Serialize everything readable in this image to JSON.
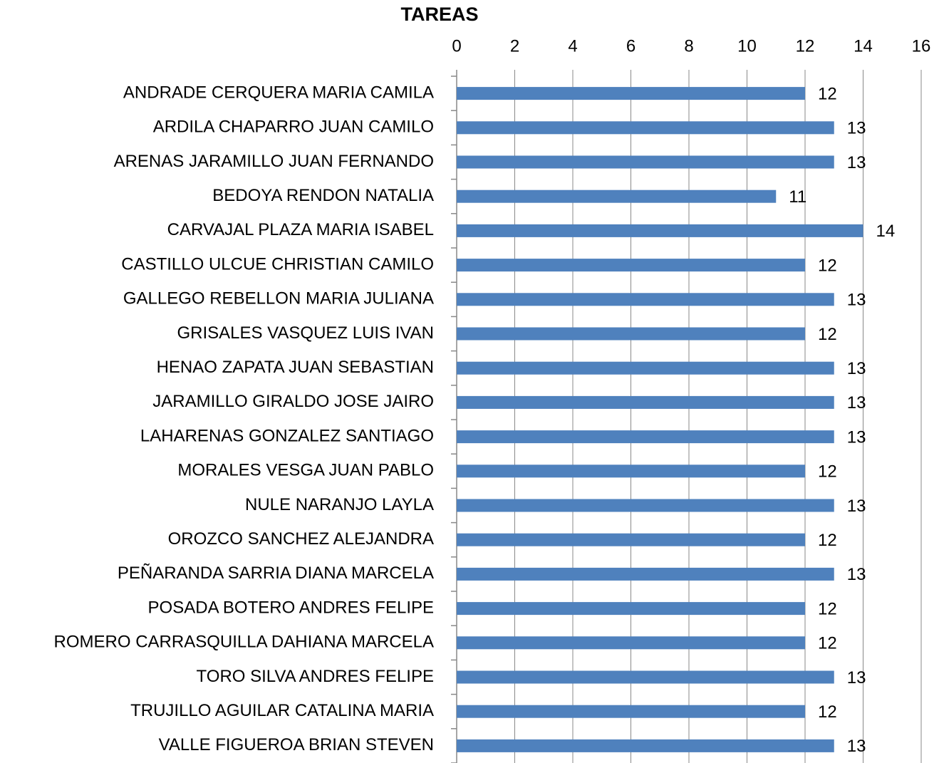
{
  "chart_data": {
    "type": "barh",
    "title": "TAREAS",
    "categories": [
      "ANDRADE CERQUERA MARIA CAMILA",
      "ARDILA CHAPARRO JUAN CAMILO",
      "ARENAS JARAMILLO JUAN FERNANDO",
      "BEDOYA RENDON NATALIA",
      "CARVAJAL PLAZA MARIA ISABEL",
      "CASTILLO ULCUE CHRISTIAN CAMILO",
      "GALLEGO REBELLON MARIA JULIANA",
      "GRISALES VASQUEZ LUIS IVAN",
      "HENAO ZAPATA JUAN SEBASTIAN",
      "JARAMILLO GIRALDO JOSE JAIRO",
      "LAHARENAS GONZALEZ SANTIAGO",
      "MORALES VESGA JUAN PABLO",
      "NULE NARANJO LAYLA",
      "OROZCO SANCHEZ ALEJANDRA",
      "PEÑARANDA SARRIA DIANA MARCELA",
      "POSADA BOTERO ANDRES FELIPE",
      "ROMERO CARRASQUILLA DAHIANA MARCELA",
      "TORO SILVA ANDRES FELIPE",
      "TRUJILLO AGUILAR CATALINA MARIA",
      "VALLE FIGUEROA BRIAN STEVEN"
    ],
    "values": [
      12,
      13,
      13,
      11,
      14,
      12,
      13,
      12,
      13,
      13,
      13,
      12,
      13,
      12,
      13,
      12,
      12,
      13,
      12,
      13
    ],
    "color": "#4f81bd",
    "xlim": [
      0,
      16
    ],
    "xticks": [
      0,
      2,
      4,
      6,
      8,
      10,
      12,
      14,
      16
    ],
    "grid": true
  }
}
